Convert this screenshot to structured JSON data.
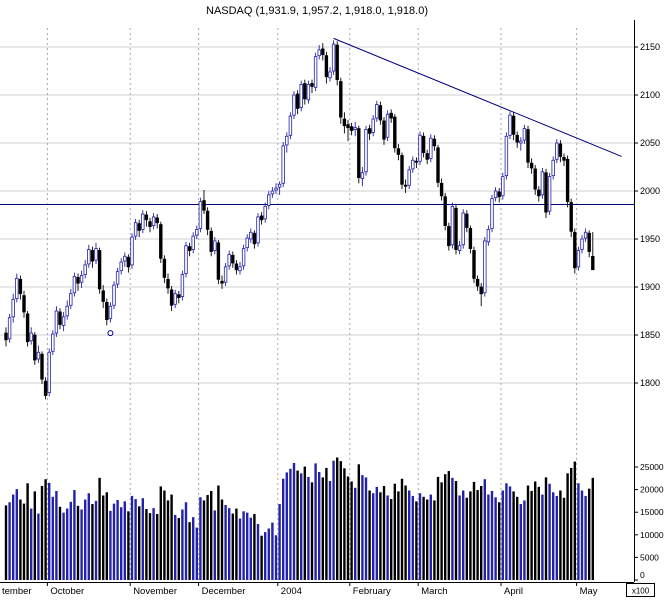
{
  "title": "NASDAQ (1,931.9, 1,957.2, 1,918.0, 1,918.0)",
  "colors": {
    "up": "#2222aa",
    "down": "#000000",
    "overlay_line": "#000080",
    "grid_h": "#d2d2d2",
    "grid_v": "#a8a8a8",
    "axis": "#000000",
    "background": "#ffffff"
  },
  "chart_data": {
    "type": "candlestick",
    "title": "NASDAQ (1,931.9, 1,957.2, 1,918.0, 1,918.0)",
    "has_volume_pane": true,
    "x_axis": {
      "labels": [
        "tember",
        "October",
        "November",
        "December",
        "2004",
        "February",
        "March",
        "April",
        "May"
      ],
      "label_start_indices": [
        0,
        12,
        35,
        54,
        76,
        96,
        115,
        138,
        159
      ]
    },
    "y_axis_price": {
      "ticks": [
        2150,
        2100,
        2050,
        2000,
        1950,
        1900,
        1850,
        1800
      ]
    },
    "y_axis_volume": {
      "ticks": [
        25000,
        20000,
        15000,
        10000,
        5000,
        0
      ],
      "unit_label": "x100"
    },
    "overlays": {
      "horizontal_line_price": 1986,
      "trendline": {
        "from_index": 91,
        "from_price": 2159,
        "to_index": 171,
        "to_price": 2036
      },
      "circle_marker": {
        "index": 29,
        "price": 1852
      }
    },
    "series_format": [
      "open",
      "high",
      "low",
      "close",
      "volume"
    ],
    "candles": [
      [
        1852,
        1858,
        1838,
        1845,
        16500
      ],
      [
        1846,
        1872,
        1842,
        1868,
        17200
      ],
      [
        1869,
        1893,
        1863,
        1887,
        18900
      ],
      [
        1888,
        1914,
        1884,
        1909,
        20100
      ],
      [
        1908,
        1912,
        1887,
        1893,
        17800
      ],
      [
        1891,
        1896,
        1868,
        1874,
        16900
      ],
      [
        1872,
        1875,
        1838,
        1843,
        21400
      ],
      [
        1844,
        1858,
        1840,
        1852,
        15800
      ],
      [
        1850,
        1853,
        1819,
        1824,
        19600
      ],
      [
        1825,
        1839,
        1821,
        1832,
        14700
      ],
      [
        1830,
        1833,
        1799,
        1804,
        20800
      ],
      [
        1802,
        1806,
        1783,
        1787,
        22300
      ],
      [
        1790,
        1836,
        1786,
        1832,
        21500
      ],
      [
        1833,
        1855,
        1829,
        1851,
        18400
      ],
      [
        1852,
        1880,
        1848,
        1875,
        19700
      ],
      [
        1874,
        1878,
        1856,
        1861,
        16200
      ],
      [
        1860,
        1874,
        1854,
        1869,
        14900
      ],
      [
        1870,
        1886,
        1866,
        1880,
        15800
      ],
      [
        1881,
        1898,
        1877,
        1893,
        17300
      ],
      [
        1894,
        1915,
        1890,
        1911,
        19900
      ],
      [
        1910,
        1914,
        1896,
        1904,
        16400
      ],
      [
        1905,
        1917,
        1899,
        1912,
        15600
      ],
      [
        1913,
        1928,
        1909,
        1923,
        17800
      ],
      [
        1924,
        1944,
        1920,
        1939,
        19200
      ],
      [
        1938,
        1942,
        1920,
        1927,
        16800
      ],
      [
        1928,
        1946,
        1924,
        1940,
        17500
      ],
      [
        1938,
        1941,
        1893,
        1898,
        22600
      ],
      [
        1896,
        1902,
        1878,
        1885,
        18700
      ],
      [
        1884,
        1888,
        1860,
        1866,
        19400
      ],
      [
        1867,
        1884,
        1863,
        1880,
        15300
      ],
      [
        1881,
        1906,
        1877,
        1902,
        16900
      ],
      [
        1903,
        1920,
        1899,
        1916,
        17700
      ],
      [
        1917,
        1930,
        1913,
        1926,
        16100
      ],
      [
        1927,
        1936,
        1921,
        1932,
        17400
      ],
      [
        1931,
        1934,
        1915,
        1921,
        15200
      ],
      [
        1923,
        1956,
        1919,
        1952,
        18600
      ],
      [
        1953,
        1971,
        1949,
        1967,
        17900
      ],
      [
        1966,
        1970,
        1952,
        1959,
        16300
      ],
      [
        1960,
        1980,
        1956,
        1976,
        18100
      ],
      [
        1975,
        1979,
        1963,
        1970,
        15700
      ],
      [
        1968,
        1972,
        1957,
        1963,
        14800
      ],
      [
        1964,
        1977,
        1960,
        1973,
        15900
      ],
      [
        1972,
        1976,
        1961,
        1967,
        14600
      ],
      [
        1965,
        1968,
        1925,
        1930,
        20700
      ],
      [
        1929,
        1933,
        1904,
        1910,
        19800
      ],
      [
        1908,
        1914,
        1893,
        1899,
        17600
      ],
      [
        1897,
        1901,
        1875,
        1881,
        18900
      ],
      [
        1882,
        1897,
        1878,
        1893,
        14400
      ],
      [
        1892,
        1896,
        1883,
        1889,
        13700
      ],
      [
        1890,
        1917,
        1886,
        1913,
        15600
      ],
      [
        1914,
        1947,
        1910,
        1943,
        17200
      ],
      [
        1942,
        1946,
        1932,
        1938,
        12800
      ],
      [
        1939,
        1957,
        1935,
        1953,
        13900
      ],
      [
        1954,
        1964,
        1950,
        1960,
        11600
      ],
      [
        1961,
        1993,
        1957,
        1989,
        18300
      ],
      [
        1990,
        2001,
        1976,
        1980,
        17600
      ],
      [
        1979,
        1983,
        1954,
        1960,
        18800
      ],
      [
        1958,
        1962,
        1932,
        1937,
        19700
      ],
      [
        1938,
        1952,
        1934,
        1948,
        15400
      ],
      [
        1946,
        1949,
        1903,
        1908,
        20900
      ],
      [
        1906,
        1912,
        1898,
        1904,
        17800
      ],
      [
        1905,
        1925,
        1901,
        1921,
        16600
      ],
      [
        1922,
        1938,
        1918,
        1934,
        15900
      ],
      [
        1933,
        1937,
        1920,
        1925,
        14700
      ],
      [
        1924,
        1928,
        1913,
        1918,
        15800
      ],
      [
        1917,
        1926,
        1913,
        1921,
        13600
      ],
      [
        1922,
        1944,
        1918,
        1940,
        15200
      ],
      [
        1941,
        1955,
        1937,
        1951,
        14900
      ],
      [
        1950,
        1961,
        1946,
        1957,
        13800
      ],
      [
        1956,
        1959,
        1940,
        1945,
        14600
      ],
      [
        1946,
        1977,
        1942,
        1973,
        12400
      ],
      [
        1974,
        1978,
        1965,
        1970,
        9800
      ],
      [
        1971,
        1988,
        1967,
        1984,
        10600
      ],
      [
        1985,
        2000,
        1981,
        1996,
        11400
      ],
      [
        1997,
        2004,
        1993,
        2000,
        12700
      ],
      [
        2001,
        2008,
        1997,
        2003,
        9900
      ],
      [
        2004,
        2010,
        1996,
        2007,
        16800
      ],
      [
        2008,
        2051,
        2004,
        2047,
        22400
      ],
      [
        2048,
        2061,
        2040,
        2057,
        23800
      ],
      [
        2058,
        2082,
        2054,
        2078,
        24600
      ],
      [
        2079,
        2104,
        2075,
        2100,
        25900
      ],
      [
        2101,
        2105,
        2080,
        2086,
        24200
      ],
      [
        2087,
        2115,
        2083,
        2111,
        23600
      ],
      [
        2112,
        2116,
        2090,
        2096,
        25100
      ],
      [
        2095,
        2115,
        2091,
        2111,
        22800
      ],
      [
        2112,
        2116,
        2102,
        2109,
        21600
      ],
      [
        2108,
        2144,
        2104,
        2140,
        25800
      ],
      [
        2141,
        2152,
        2137,
        2147,
        23900
      ],
      [
        2148,
        2154,
        2136,
        2142,
        22700
      ],
      [
        2141,
        2145,
        2112,
        2119,
        24800
      ],
      [
        2118,
        2129,
        2114,
        2124,
        21900
      ],
      [
        2125,
        2157,
        2121,
        2153,
        26400
      ],
      [
        2152,
        2156,
        2110,
        2116,
        27100
      ],
      [
        2114,
        2118,
        2070,
        2077,
        26300
      ],
      [
        2075,
        2082,
        2060,
        2068,
        24700
      ],
      [
        2069,
        2074,
        2052,
        2066,
        22900
      ],
      [
        2067,
        2071,
        2058,
        2063,
        21800
      ],
      [
        2064,
        2072,
        2057,
        2066,
        20400
      ],
      [
        2065,
        2068,
        2008,
        2014,
        25600
      ],
      [
        2013,
        2025,
        2005,
        2019,
        23200
      ],
      [
        2020,
        2068,
        2016,
        2064,
        22700
      ],
      [
        2065,
        2069,
        2053,
        2060,
        19800
      ],
      [
        2061,
        2079,
        2057,
        2075,
        19200
      ],
      [
        2076,
        2094,
        2072,
        2090,
        20600
      ],
      [
        2089,
        2093,
        2069,
        2074,
        19400
      ],
      [
        2073,
        2077,
        2048,
        2054,
        20800
      ],
      [
        2056,
        2084,
        2052,
        2080,
        18700
      ],
      [
        2081,
        2085,
        2071,
        2076,
        17900
      ],
      [
        2077,
        2080,
        2040,
        2045,
        21300
      ],
      [
        2044,
        2049,
        2032,
        2038,
        19600
      ],
      [
        2037,
        2040,
        2002,
        2007,
        22400
      ],
      [
        2006,
        2012,
        1998,
        2005,
        20900
      ],
      [
        2006,
        2026,
        2002,
        2022,
        19800
      ],
      [
        2023,
        2036,
        2019,
        2032,
        18600
      ],
      [
        2031,
        2035,
        2024,
        2030,
        17400
      ],
      [
        2031,
        2062,
        2027,
        2058,
        19200
      ],
      [
        2057,
        2061,
        2035,
        2040,
        18400
      ],
      [
        2039,
        2043,
        2028,
        2033,
        17800
      ],
      [
        2034,
        2059,
        2030,
        2055,
        18900
      ],
      [
        2054,
        2058,
        2042,
        2047,
        17600
      ],
      [
        2045,
        2048,
        2004,
        2009,
        22800
      ],
      [
        2008,
        2013,
        1990,
        1995,
        21600
      ],
      [
        1994,
        1998,
        1959,
        1964,
        23400
      ],
      [
        1963,
        1967,
        1938,
        1943,
        24100
      ],
      [
        1944,
        1988,
        1940,
        1984,
        22600
      ],
      [
        1982,
        1986,
        1934,
        1939,
        21900
      ],
      [
        1938,
        1948,
        1934,
        1943,
        18700
      ],
      [
        1944,
        1981,
        1940,
        1977,
        19800
      ],
      [
        1976,
        1980,
        1957,
        1962,
        18200
      ],
      [
        1961,
        1964,
        1935,
        1940,
        19600
      ],
      [
        1938,
        1942,
        1904,
        1909,
        21700
      ],
      [
        1908,
        1912,
        1896,
        1901,
        19900
      ],
      [
        1900,
        1904,
        1880,
        1893,
        20800
      ],
      [
        1894,
        1952,
        1890,
        1948,
        22300
      ],
      [
        1947,
        1964,
        1943,
        1960,
        18900
      ],
      [
        1961,
        1996,
        1957,
        1992,
        19700
      ],
      [
        1993,
        2004,
        1989,
        2000,
        18300
      ],
      [
        1999,
        2003,
        1988,
        1994,
        17200
      ],
      [
        1995,
        2019,
        1991,
        2015,
        19800
      ],
      [
        2016,
        2061,
        2012,
        2057,
        21400
      ],
      [
        2058,
        2083,
        2054,
        2079,
        20700
      ],
      [
        2078,
        2082,
        2053,
        2059,
        19600
      ],
      [
        2058,
        2062,
        2045,
        2051,
        18400
      ],
      [
        2050,
        2056,
        2042,
        2052,
        16800
      ],
      [
        2053,
        2069,
        2049,
        2065,
        17600
      ],
      [
        2064,
        2068,
        2024,
        2030,
        20900
      ],
      [
        2029,
        2034,
        2018,
        2024,
        19700
      ],
      [
        2023,
        2027,
        1996,
        2002,
        21800
      ],
      [
        2001,
        2005,
        1989,
        1995,
        20600
      ],
      [
        1996,
        2024,
        1992,
        2020,
        18900
      ],
      [
        2019,
        2023,
        1972,
        1978,
        22700
      ],
      [
        1979,
        2019,
        1975,
        2015,
        21300
      ],
      [
        2016,
        2036,
        2012,
        2032,
        19400
      ],
      [
        2033,
        2054,
        2029,
        2050,
        18600
      ],
      [
        2049,
        2053,
        2030,
        2036,
        19800
      ],
      [
        2035,
        2039,
        2026,
        2032,
        18200
      ],
      [
        2033,
        2037,
        1983,
        1989,
        23600
      ],
      [
        1988,
        1992,
        1952,
        1958,
        24800
      ],
      [
        1957,
        1961,
        1914,
        1920,
        26200
      ],
      [
        1921,
        1942,
        1917,
        1938,
        21400
      ],
      [
        1939,
        1954,
        1935,
        1950,
        19800
      ],
      [
        1951,
        1961,
        1947,
        1957,
        18600
      ],
      [
        1956,
        1959,
        1931,
        1937,
        20200
      ],
      [
        1931.9,
        1957.2,
        1918,
        1918,
        22600
      ]
    ]
  }
}
